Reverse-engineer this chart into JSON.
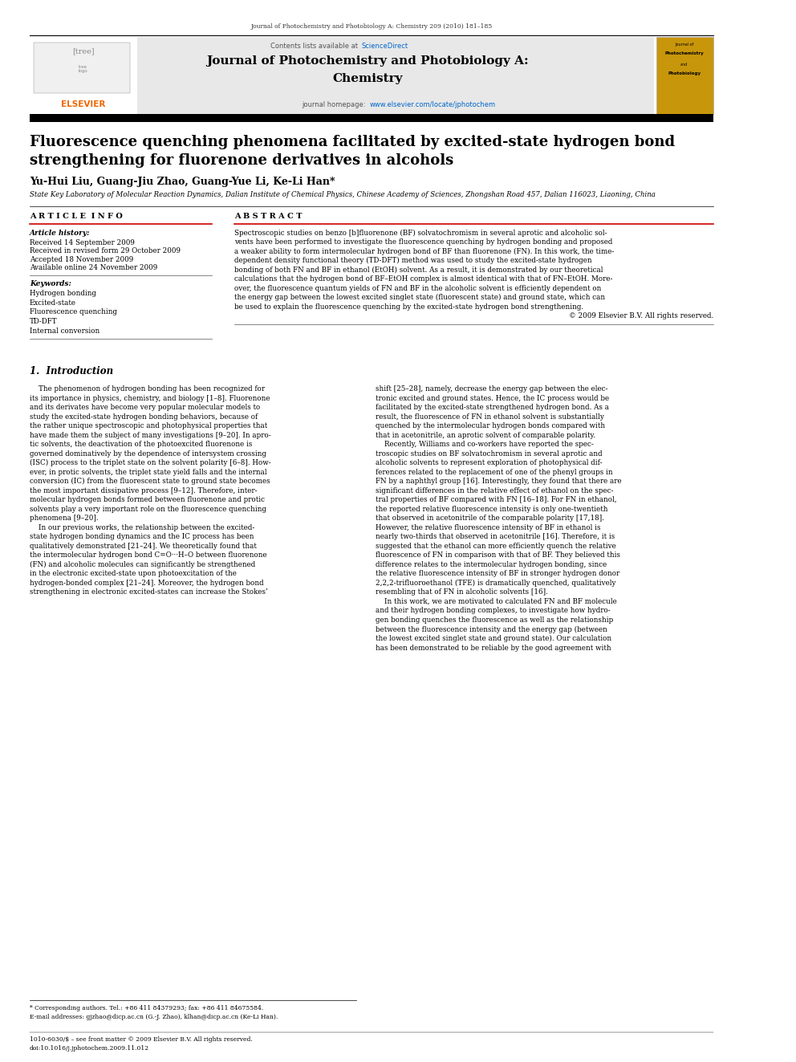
{
  "page_width": 9.92,
  "page_height": 13.23,
  "background_color": "#ffffff",
  "top_journal_text": "Journal of Photochemistry and Photobiology A: Chemistry 209 (2010) 181–185",
  "header_bg_color": "#e8e8e8",
  "header_contents_text": "Contents lists available at ",
  "header_sciencedirect_text": "ScienceDirect",
  "header_sciencedirect_color": "#0066cc",
  "journal_title_line1": "Journal of Photochemistry and Photobiology A:",
  "journal_title_line2": "Chemistry",
  "journal_homepage_text": "journal homepage: ",
  "journal_homepage_url": "www.elsevier.com/locate/jphotochem",
  "journal_homepage_color": "#0066cc",
  "separator_color": "#000000",
  "article_title": "Fluorescence quenching phenomena facilitated by excited-state hydrogen bond\nstrengthening for fluorenone derivatives in alcohols",
  "authors": "Yu-Hui Liu, Guang-Jiu Zhao, Guang-Yue Li, Ke-Li Han*",
  "affiliation": "State Key Laboratory of Molecular Reaction Dynamics, Dalian Institute of Chemical Physics, Chinese Academy of Sciences, Zhongshan Road 457, Dalian 116023, Liaoning, China",
  "article_info_header": "A R T I C L E  I N F O",
  "abstract_header": "A B S T R A C T",
  "article_history_label": "Article history:",
  "received1": "Received 14 September 2009",
  "received2": "Received in revised form 29 October 2009",
  "accepted": "Accepted 18 November 2009",
  "available": "Available online 24 November 2009",
  "keywords_label": "Keywords:",
  "keywords": [
    "Hydrogen bonding",
    "Excited-state",
    "Fluorescence quenching",
    "TD-DFT",
    "Internal conversion"
  ],
  "abstract_lines": [
    "Spectroscopic studies on benzo [b]fluorenone (BF) solvatochromism in several aprotic and alcoholic sol-",
    "vents have been performed to investigate the fluorescence quenching by hydrogen bonding and proposed",
    "a weaker ability to form intermolecular hydrogen bond of BF than fluorenone (FN). In this work, the time-",
    "dependent density functional theory (TD-DFT) method was used to study the excited-state hydrogen",
    "bonding of both FN and BF in ethanol (EtOH) solvent. As a result, it is demonstrated by our theoretical",
    "calculations that the hydrogen bond of BF–EtOH complex is almost identical with that of FN–EtOH. More-",
    "over, the fluorescence quantum yields of FN and BF in the alcoholic solvent is efficiently dependent on",
    "the energy gap between the lowest excited singlet state (fluorescent state) and ground state, which can",
    "be used to explain the fluorescence quenching by the excited-state hydrogen bond strengthening.",
    "© 2009 Elsevier B.V. All rights reserved."
  ],
  "section1_title": "1.  Introduction",
  "left_intro_lines": [
    "    The phenomenon of hydrogen bonding has been recognized for",
    "its importance in physics, chemistry, and biology [1–8]. Fluorenone",
    "and its derivates have become very popular molecular models to",
    "study the excited-state hydrogen bonding behaviors, because of",
    "the rather unique spectroscopic and photophysical properties that",
    "have made them the subject of many investigations [9–20]. In apro-",
    "tic solvents, the deactivation of the photoexcited fluorenone is",
    "governed dominatively by the dependence of intersystem crossing",
    "(ISC) process to the triplet state on the solvent polarity [6–8]. How-",
    "ever, in protic solvents, the triplet state yield falls and the internal",
    "conversion (IC) from the fluorescent state to ground state becomes",
    "the most important dissipative process [9–12]. Therefore, inter-",
    "molecular hydrogen bonds formed between fluorenone and protic",
    "solvents play a very important role on the fluorescence quenching",
    "phenomena [9–20].",
    "    In our previous works, the relationship between the excited-",
    "state hydrogen bonding dynamics and the IC process has been",
    "qualitatively demonstrated [21–24]. We theoretically found that",
    "the intermolecular hydrogen bond C=O···H–O between fluorenone",
    "(FN) and alcoholic molecules can significantly be strengthened",
    "in the electronic excited-state upon photoexcitation of the",
    "hydrogen-bonded complex [21–24]. Moreover, the hydrogen bond",
    "strengthening in electronic excited-states can increase the Stokes’"
  ],
  "right_intro_lines": [
    "shift [25–28], namely, decrease the energy gap between the elec-",
    "tronic excited and ground states. Hence, the IC process would be",
    "facilitated by the excited-state strengthened hydrogen bond. As a",
    "result, the fluorescence of FN in ethanol solvent is substantially",
    "quenched by the intermolecular hydrogen bonds compared with",
    "that in acetonitrile, an aprotic solvent of comparable polarity.",
    "    Recently, Williams and co-workers have reported the spec-",
    "troscopic studies on BF solvatochromism in several aprotic and",
    "alcoholic solvents to represent exploration of photophysical dif-",
    "ferences related to the replacement of one of the phenyl groups in",
    "FN by a naphthyl group [16]. Interestingly, they found that there are",
    "significant differences in the relative effect of ethanol on the spec-",
    "tral properties of BF compared with FN [16–18]. For FN in ethanol,",
    "the reported relative fluorescence intensity is only one-twentieth",
    "that observed in acetonitrile of the comparable polarity [17,18].",
    "However, the relative fluorescence intensity of BF in ethanol is",
    "nearly two-thirds that observed in acetonitrile [16]. Therefore, it is",
    "suggested that the ethanol can more efficiently quench the relative",
    "fluorescence of FN in comparison with that of BF. They believed this",
    "difference relates to the intermolecular hydrogen bonding, since",
    "the relative fluorescence intensity of BF in stronger hydrogen donor",
    "2,2,2-trifluoroethanol (TFE) is dramatically quenched, qualitatively",
    "resembling that of FN in alcoholic solvents [16].",
    "    In this work, we are motivated to calculated FN and BF molecule",
    "and their hydrogen bonding complexes, to investigate how hydro-",
    "gen bonding quenches the fluorescence as well as the relationship",
    "between the fluorescence intensity and the energy gap (between",
    "the lowest excited singlet state and ground state). Our calculation",
    "has been demonstrated to be reliable by the good agreement with"
  ],
  "footnote_star": "* Corresponding authors. Tel.: +86 411 84379293; fax: +86 411 84675584.",
  "footnote_email": "E-mail addresses: gjzhao@dicp.ac.cn (G.-J. Zhao), klhan@dicp.ac.cn (Ke-Li Han).",
  "footer_left": "1010-6030/$ – see front matter © 2009 Elsevier B.V. All rights reserved.",
  "footer_doi": "doi:10.1016/j.jphotochem.2009.11.012"
}
